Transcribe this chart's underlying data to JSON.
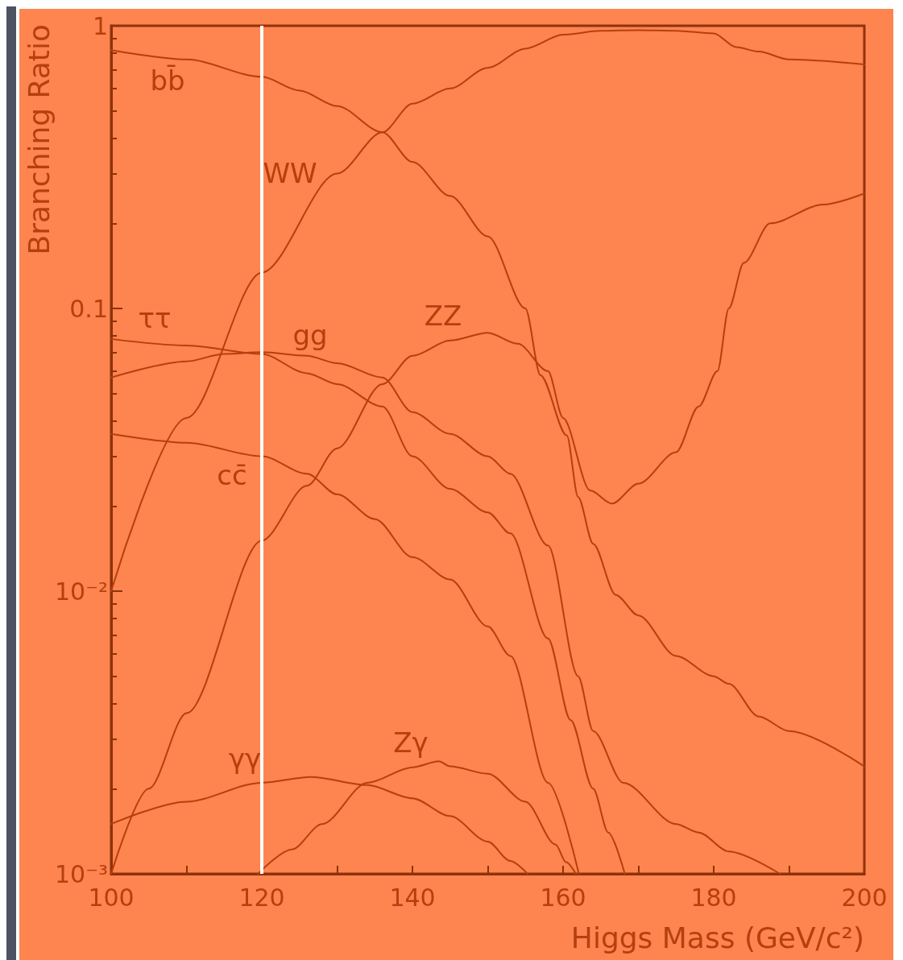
{
  "chart_data": {
    "type": "line",
    "xlabel": "Higgs Mass (GeV/c²)",
    "ylabel": "Branching Ratio",
    "log": "y",
    "grid": false,
    "legend": false,
    "marker": "none",
    "line_style": "solid",
    "xlim": [
      100,
      200
    ],
    "xticks": [
      100,
      {
        "value": 110,
        "label": null
      },
      120,
      {
        "value": 130,
        "label": null
      },
      140,
      {
        "value": 150,
        "label": null
      },
      160,
      {
        "value": 170,
        "label": null
      },
      180,
      {
        "value": 190,
        "label": null
      },
      200
    ],
    "ylim": [
      0.001,
      1
    ],
    "yticks": [
      {
        "value": 0.001,
        "label": "10⁻³"
      },
      {
        "value": 0.01,
        "label": "10⁻²"
      },
      0.1,
      1
    ],
    "ref_lines": [
      {
        "axis": "x",
        "value": 120,
        "color": "#ffffff"
      }
    ],
    "series": [
      {
        "name": "bb̄",
        "color": "#b5400f",
        "x": [
          100,
          110,
          120,
          125,
          130,
          136,
          140,
          145,
          150,
          155,
          157,
          160.5,
          162,
          164,
          167,
          170,
          175,
          180,
          182,
          186,
          190,
          200
        ],
        "values": [
          0.82,
          0.76,
          0.66,
          0.59,
          0.52,
          0.42,
          0.33,
          0.25,
          0.18,
          0.1,
          0.058,
          0.0355,
          0.0215,
          0.0147,
          0.0097,
          0.0082,
          0.0059,
          0.005,
          0.0047,
          0.0036,
          0.0032,
          0.0024
        ]
      },
      {
        "name": "WW",
        "color": "#b5400f",
        "x": [
          100,
          110,
          120,
          130,
          136,
          140,
          145,
          150,
          155,
          160,
          165,
          170,
          175,
          180,
          183,
          186,
          190,
          200
        ],
        "values": [
          0.01,
          0.041,
          0.134,
          0.3,
          0.42,
          0.53,
          0.6,
          0.71,
          0.83,
          0.93,
          0.96,
          0.965,
          0.96,
          0.94,
          0.84,
          0.81,
          0.76,
          0.73
        ]
      },
      {
        "name": "ττ",
        "color": "#b5400f",
        "x": [
          100,
          110,
          120,
          126,
          130,
          136,
          140,
          145,
          150,
          153,
          158,
          161,
          164,
          166,
          168.2
        ],
        "values": [
          0.078,
          0.074,
          0.069,
          0.059,
          0.054,
          0.045,
          0.03,
          0.023,
          0.019,
          0.016,
          0.0068,
          0.0035,
          0.002,
          0.0014,
          0.001
        ]
      },
      {
        "name": "gg",
        "color": "#b5400f",
        "x": [
          100,
          110,
          115,
          120,
          126,
          130,
          136,
          140,
          145,
          150,
          153,
          158,
          162,
          164,
          168,
          175,
          178,
          182,
          188.8
        ],
        "values": [
          0.057,
          0.065,
          0.069,
          0.07,
          0.068,
          0.064,
          0.057,
          0.043,
          0.036,
          0.03,
          0.026,
          0.0145,
          0.005,
          0.0032,
          0.0021,
          0.0015,
          0.0014,
          0.0012,
          0.001
        ]
      },
      {
        "name": "cc̄",
        "color": "#b5400f",
        "x": [
          100,
          110,
          120,
          126,
          130,
          135,
          140,
          145,
          150,
          153,
          158,
          162.1
        ],
        "values": [
          0.036,
          0.0335,
          0.03,
          0.026,
          0.022,
          0.018,
          0.0132,
          0.011,
          0.0075,
          0.0059,
          0.0021,
          0.001
        ]
      },
      {
        "name": "ZZ",
        "color": "#b5400f",
        "x": [
          100,
          105,
          110,
          120,
          126,
          130,
          136,
          140,
          145,
          150,
          154,
          158,
          160,
          163.6,
          166.5,
          170,
          175,
          178,
          180.5,
          182,
          184,
          187.5,
          194.5,
          200
        ],
        "values": [
          0.001,
          0.002,
          0.0037,
          0.0151,
          0.0236,
          0.032,
          0.054,
          0.068,
          0.077,
          0.082,
          0.075,
          0.06,
          0.041,
          0.0227,
          0.0204,
          0.024,
          0.031,
          0.045,
          0.06,
          0.1,
          0.145,
          0.2,
          0.233,
          0.255
        ]
      },
      {
        "name": "γγ",
        "color": "#b5400f",
        "x": [
          100,
          110,
          120,
          126.5,
          134,
          140,
          145,
          150,
          153,
          155.3
        ],
        "values": [
          0.0015,
          0.0018,
          0.0021,
          0.0022,
          0.00206,
          0.00185,
          0.0016,
          0.0013,
          0.00111,
          0.001
        ]
      },
      {
        "name": "Zγ",
        "color": "#b5400f",
        "x": [
          119.5,
          124,
          128,
          134,
          140,
          143.5,
          145,
          150,
          155,
          159,
          160.4,
          161.7
        ],
        "values": [
          0.001,
          0.00122,
          0.0015,
          0.0021,
          0.00238,
          0.0025,
          0.0024,
          0.00226,
          0.0018,
          0.00127,
          0.0011,
          0.001
        ]
      }
    ]
  }
}
